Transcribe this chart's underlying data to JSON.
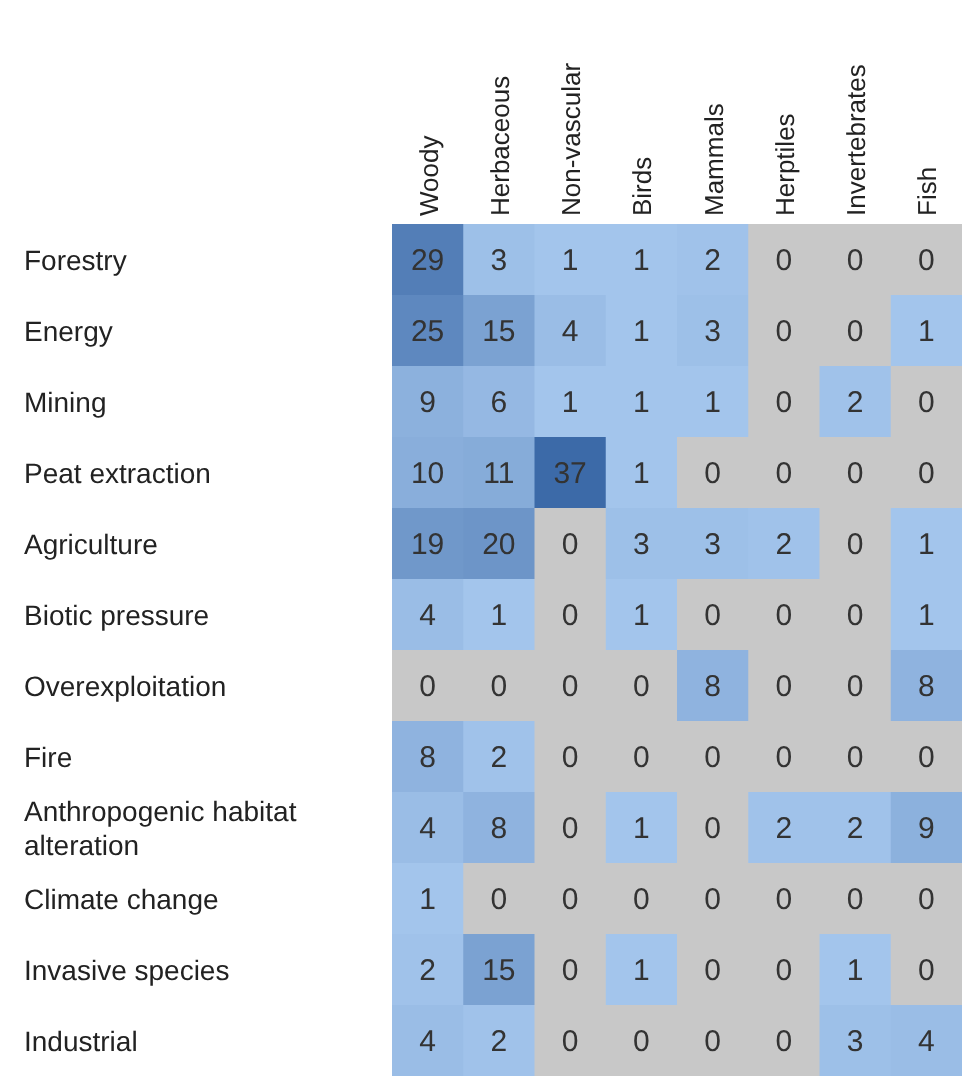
{
  "chart_data": {
    "type": "heatmap",
    "categories": [
      "Woody",
      "Herbaceous",
      "Non-vascular",
      "Birds",
      "Mammals",
      "Herptiles",
      "Invertebrates",
      "Fish"
    ],
    "y_categories": [
      "Forestry",
      "Energy",
      "Mining",
      "Peat extraction",
      "Agriculture",
      "Biotic pressure",
      "Overexploitation",
      "Fire",
      "Anthropogenic habitat alteration",
      "Climate change",
      "Invasive species",
      "Industrial"
    ],
    "cells": [
      [
        29,
        3,
        1,
        1,
        2,
        0,
        0,
        0
      ],
      [
        25,
        15,
        4,
        1,
        3,
        0,
        0,
        1
      ],
      [
        9,
        6,
        1,
        1,
        1,
        0,
        2,
        0
      ],
      [
        10,
        11,
        37,
        1,
        0,
        0,
        0,
        0
      ],
      [
        19,
        20,
        0,
        3,
        3,
        2,
        0,
        1
      ],
      [
        4,
        1,
        0,
        1,
        0,
        0,
        0,
        1
      ],
      [
        0,
        0,
        0,
        0,
        8,
        0,
        0,
        8
      ],
      [
        8,
        2,
        0,
        0,
        0,
        0,
        0,
        0
      ],
      [
        4,
        8,
        0,
        1,
        0,
        2,
        2,
        9
      ],
      [
        1,
        0,
        0,
        0,
        0,
        0,
        0,
        0
      ],
      [
        2,
        15,
        0,
        1,
        0,
        0,
        1,
        0
      ],
      [
        4,
        2,
        0,
        0,
        0,
        0,
        3,
        4
      ]
    ],
    "data_labels": true
  }
}
